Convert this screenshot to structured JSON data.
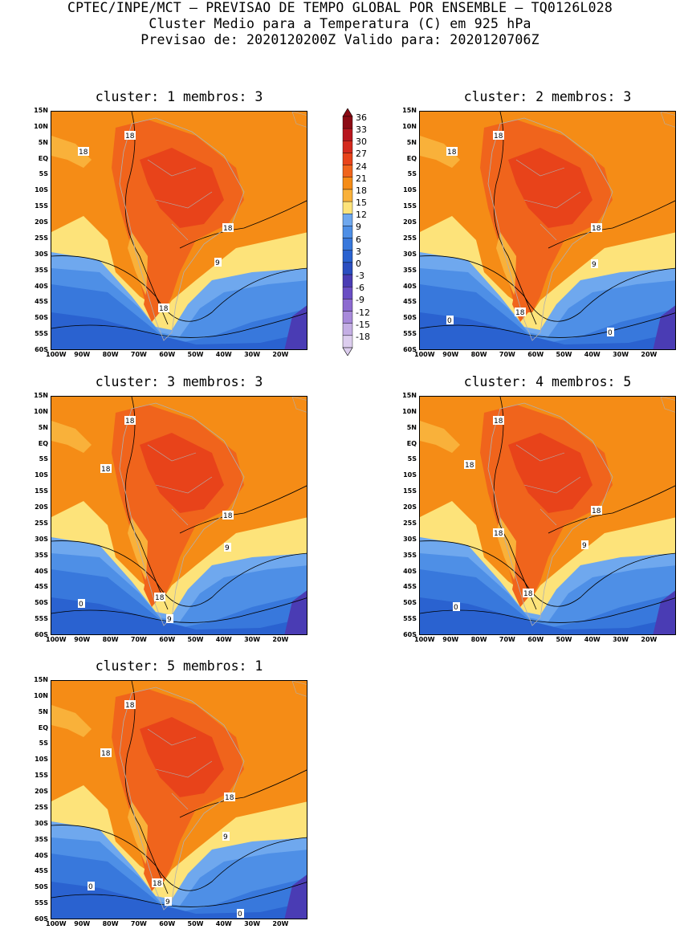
{
  "header": {
    "line1": "CPTEC/INPE/MCT – PREVISAO DE TEMPO GLOBAL POR ENSEMBLE – TQ0126L028",
    "line2": "Cluster Medio para a Temperatura (C) em 925 hPa",
    "line3": "Previsao de: 2020120200Z   Valido para: 2020120706Z"
  },
  "panels": [
    {
      "title": "cluster: 1  membros: 3",
      "labels": [
        "18",
        "18",
        "18",
        "18",
        "9"
      ]
    },
    {
      "title": "cluster: 2  membros: 3",
      "labels": [
        "18",
        "18",
        "18",
        "18",
        "9",
        "0",
        "0"
      ]
    },
    {
      "title": "cluster: 3  membros: 3",
      "labels": [
        "18",
        "18",
        "18",
        "18",
        "9",
        "9",
        "0"
      ]
    },
    {
      "title": "cluster: 4  membros: 5",
      "labels": [
        "18",
        "18",
        "18",
        "18",
        "18",
        "9",
        "0"
      ]
    },
    {
      "title": "cluster: 5  membros: 1",
      "labels": [
        "18",
        "18",
        "18",
        "18",
        "9",
        "9",
        "0",
        "0"
      ]
    }
  ],
  "lat_ticks": [
    "15N",
    "10N",
    "5N",
    "EQ",
    "5S",
    "10S",
    "15S",
    "20S",
    "25S",
    "30S",
    "35S",
    "40S",
    "45S",
    "50S",
    "55S",
    "60S"
  ],
  "lon_ticks": [
    "100W",
    "90W",
    "80W",
    "70W",
    "60W",
    "50W",
    "40W",
    "30W",
    "20W"
  ],
  "colorbar": {
    "levels": [
      "36",
      "33",
      "30",
      "27",
      "24",
      "21",
      "18",
      "15",
      "12",
      "9",
      "6",
      "3",
      "0",
      "-3",
      "-6",
      "-9",
      "-12",
      "-15",
      "-18"
    ],
    "colors": [
      "#8c0a14",
      "#b8161e",
      "#d42a1e",
      "#e8431a",
      "#f0641c",
      "#f58c16",
      "#f9b13a",
      "#fde37a",
      "#6fa8ee",
      "#4e8fe6",
      "#3878dc",
      "#2a62d0",
      "#2b4ec0",
      "#4a3cb4",
      "#6a4ec4",
      "#8c6ad0",
      "#a88ada",
      "#c4aee4",
      "#dccdee"
    ]
  }
}
